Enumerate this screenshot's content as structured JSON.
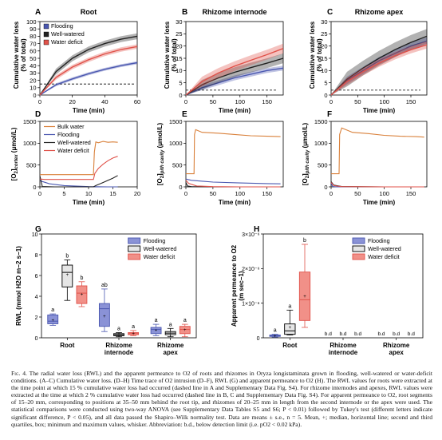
{
  "caption": {
    "label": "Fig. 4.",
    "text": "The radial water loss (RWL) and the apparent permeance to O2 of roots and rhizomes in Oryza longistaminata grown in flooding, well-watered or water-deficit conditions. (A–C) Cumulative water loss. (D–H) Time trace of O2 intrusion (D–F), RWL (G) and apparent permeance to O2 (H). The RWL values for roots were extracted at the time point at which 15 % cumulative water loss had occurred (dashed line in A and Supplementary Data Fig. S4). For rhizome internodes and apexes, RWL values were extracted at the time at which 2 % cumulative water loss had occurred (dashed line in B, C and Supplementary Data Fig. S4). For apparent permeance to O2, root segments of 15–20 mm, corresponding to positions at 35–50 mm behind the root tip, and rhizomes of 20–25 mm in length from the second internode or the apex were used. The statistical comparisons were conducted using two-way ANOVA (see Supplementary Data Tables S5 and S6; P < 0.01) followed by Tukey's test (different letters indicate significant difference, P < 0.05), and all data passed the Shapiro–Wilk normality test. Data are means ± s.e., n = 5. Mean, +; median, horizontal line; second and third quartiles, box; minimum and maximum values, whisker. Abbreviation: b.d., below detection limit (i.e. pO2 < 0.02 kPa)."
  },
  "colors": {
    "flooding": "#4a57b0",
    "well_watered": "#222222",
    "water_deficit": "#e0524a",
    "bulk_water": "#d9803a",
    "dashed": "#000000"
  },
  "chart_data": [
    {
      "panel": "A",
      "type": "line",
      "title": "Root",
      "xlabel": "Time (min)",
      "ylabel": "Cumulative water loss (% of total)",
      "xlim": [
        0,
        60
      ],
      "ylim": [
        0,
        100
      ],
      "xticks": [
        0,
        20,
        40,
        60
      ],
      "yticks": [
        0,
        10,
        20,
        30,
        40,
        50,
        60,
        70,
        80,
        90,
        100
      ],
      "dashed_y": 15,
      "legend": [
        "Flooding",
        "Well-watered",
        "Water deficit"
      ],
      "series": [
        {
          "name": "Flooding",
          "x": [
            0,
            10,
            20,
            30,
            40,
            50,
            60
          ],
          "y": [
            0,
            14,
            22,
            29,
            35,
            40,
            44
          ],
          "band": 2
        },
        {
          "name": "Well-watered",
          "x": [
            0,
            10,
            20,
            30,
            40,
            50,
            60
          ],
          "y": [
            0,
            32,
            50,
            62,
            70,
            76,
            80
          ],
          "band": 4
        },
        {
          "name": "Water deficit",
          "x": [
            0,
            10,
            20,
            30,
            40,
            50,
            60
          ],
          "y": [
            0,
            24,
            38,
            48,
            56,
            62,
            66
          ],
          "band": 3
        }
      ]
    },
    {
      "panel": "B",
      "type": "line",
      "title": "Rhizome internode",
      "xlabel": "Time (min)",
      "ylabel": "Cumulative water loss (% of total)",
      "xlim": [
        0,
        180
      ],
      "ylim": [
        0,
        30
      ],
      "xticks": [
        0,
        50,
        100,
        150
      ],
      "yticks": [
        0,
        5,
        10,
        15,
        20,
        25,
        30
      ],
      "dashed_y": 2,
      "series": [
        {
          "name": "Flooding",
          "x": [
            0,
            30,
            60,
            90,
            120,
            150,
            180
          ],
          "y": [
            0,
            3,
            5,
            7,
            8.5,
            10,
            11
          ],
          "band": 1
        },
        {
          "name": "Well-watered",
          "x": [
            0,
            30,
            60,
            90,
            120,
            150,
            180
          ],
          "y": [
            0,
            4.2,
            7,
            9.3,
            11.2,
            13,
            15
          ],
          "band": 2
        },
        {
          "name": "Water deficit",
          "x": [
            0,
            30,
            60,
            90,
            120,
            150,
            180
          ],
          "y": [
            0,
            5.5,
            9,
            11.8,
            14.2,
            16.5,
            19
          ],
          "band": 2
        }
      ]
    },
    {
      "panel": "C",
      "type": "line",
      "title": "Rhizome apex",
      "xlabel": "Time (min)",
      "ylabel": "Cumulative water loss (% of total)",
      "xlim": [
        0,
        180
      ],
      "ylim": [
        0,
        30
      ],
      "xticks": [
        0,
        50,
        100,
        150
      ],
      "yticks": [
        0,
        5,
        10,
        15,
        20,
        25,
        30
      ],
      "dashed_y": 2,
      "series": [
        {
          "name": "Flooding",
          "x": [
            0,
            30,
            60,
            90,
            120,
            150,
            180
          ],
          "y": [
            0,
            6,
            10,
            14,
            17,
            20,
            22
          ],
          "band": 1.5
        },
        {
          "name": "Well-watered",
          "x": [
            0,
            30,
            60,
            90,
            120,
            150,
            180
          ],
          "y": [
            0,
            6.5,
            11,
            15,
            18.5,
            21.5,
            24
          ],
          "band": 3
        },
        {
          "name": "Water deficit",
          "x": [
            0,
            30,
            60,
            90,
            120,
            150,
            180
          ],
          "y": [
            0,
            5.5,
            9.5,
            13,
            16,
            18.5,
            20.5
          ],
          "band": 1.5
        }
      ]
    },
    {
      "panel": "D",
      "type": "line",
      "xlabel": "Time (min)",
      "ylabel": "[O2]cortex (μmol/L)",
      "xlim": [
        0,
        20
      ],
      "ylim": [
        0,
        1500
      ],
      "xticks": [
        0,
        5,
        10,
        15,
        20
      ],
      "yticks": [
        0,
        500,
        1000,
        1500
      ],
      "legend": [
        "Bulk water",
        "Flooding",
        "Well-watered",
        "Water deficit"
      ],
      "series": [
        {
          "name": "Bulk water",
          "x": [
            0,
            0.3,
            11,
            11.2,
            11.5,
            12,
            13,
            14,
            15,
            16
          ],
          "y": [
            280,
            280,
            280,
            800,
            1030,
            1010,
            1040,
            1020,
            1030,
            1020
          ]
        },
        {
          "name": "Flooding",
          "x": [
            0,
            2,
            5,
            10,
            14,
            16
          ],
          "y": [
            140,
            70,
            30,
            5,
            0,
            0
          ]
        },
        {
          "name": "Well-watered",
          "x": [
            0,
            0.5,
            3,
            5,
            11,
            11.5,
            13,
            15,
            16
          ],
          "y": [
            250,
            10,
            0,
            0,
            0,
            30,
            100,
            200,
            260
          ]
        },
        {
          "name": "Water deficit",
          "x": [
            0,
            1,
            5,
            11,
            11.3,
            12,
            13,
            14,
            15,
            16
          ],
          "y": [
            180,
            170,
            170,
            170,
            310,
            420,
            520,
            600,
            660,
            700
          ]
        }
      ]
    },
    {
      "panel": "E",
      "type": "line",
      "xlabel": "Time (min)",
      "ylabel": "[O2]pith cavity (μmol/L)",
      "xlim": [
        0,
        180
      ],
      "ylim": [
        0,
        1500
      ],
      "xticks": [
        0,
        50,
        100,
        150
      ],
      "yticks": [
        0,
        500,
        1000,
        1500
      ],
      "series": [
        {
          "name": "Bulk water",
          "x": [
            0,
            5,
            15,
            16,
            18,
            30,
            60,
            90,
            120,
            150,
            175
          ],
          "y": [
            300,
            300,
            300,
            1200,
            1310,
            1250,
            1230,
            1200,
            1170,
            1160,
            1150
          ]
        },
        {
          "name": "Flooding",
          "x": [
            0,
            10,
            50,
            100,
            150,
            175
          ],
          "y": [
            180,
            150,
            110,
            90,
            75,
            70
          ]
        },
        {
          "name": "Well-watered",
          "x": [
            0,
            3,
            10,
            50,
            100,
            175
          ],
          "y": [
            100,
            20,
            5,
            0,
            0,
            0
          ]
        },
        {
          "name": "Water deficit",
          "x": [
            0,
            5,
            20,
            50,
            100,
            175
          ],
          "y": [
            150,
            80,
            20,
            5,
            0,
            0
          ]
        }
      ]
    },
    {
      "panel": "F",
      "type": "line",
      "xlabel": "Time (min)",
      "ylabel": "[O2]pith cavity (μmol/L)",
      "xlim": [
        0,
        180
      ],
      "ylim": [
        0,
        1500
      ],
      "xticks": [
        0,
        50,
        100,
        150
      ],
      "yticks": [
        0,
        500,
        1000,
        1500
      ],
      "series": [
        {
          "name": "Bulk water",
          "x": [
            0,
            5,
            15,
            16,
            20,
            40,
            70,
            100,
            130,
            160,
            175
          ],
          "y": [
            300,
            300,
            300,
            1200,
            1350,
            1250,
            1220,
            1180,
            1160,
            1150,
            1140
          ]
        },
        {
          "name": "Flooding",
          "x": [
            0,
            3,
            10,
            30,
            100,
            175
          ],
          "y": [
            80,
            10,
            0,
            0,
            0,
            0
          ]
        },
        {
          "name": "Well-watered",
          "x": [
            0,
            5,
            20,
            100,
            175
          ],
          "y": [
            120,
            40,
            10,
            0,
            0
          ]
        },
        {
          "name": "Water deficit",
          "x": [
            0,
            5,
            20,
            100,
            175
          ],
          "y": [
            100,
            30,
            5,
            0,
            0
          ]
        }
      ]
    },
    {
      "panel": "G",
      "type": "box",
      "ylabel": "RWL (mmol H2O m−2 s−1)",
      "ylim": [
        0,
        10
      ],
      "yticks": [
        0,
        2,
        4,
        6,
        8,
        10
      ],
      "categories": [
        "Root",
        "Rhizome internode",
        "Rhizome apex"
      ],
      "legend": [
        "Flooding",
        "Well-watered",
        "Water deficit"
      ],
      "groups": [
        {
          "category": "Root",
          "series": "Flooding",
          "min": 1.2,
          "q1": 1.35,
          "median": 1.6,
          "q3": 2.2,
          "max": 2.3,
          "mean": 1.7,
          "letter": "a"
        },
        {
          "category": "Root",
          "series": "Well-watered",
          "min": 3.6,
          "q1": 4.9,
          "median": 6.3,
          "q3": 7.0,
          "max": 7.5,
          "mean": 6.1,
          "letter": "b"
        },
        {
          "category": "Root",
          "series": "Water deficit",
          "min": 3.0,
          "q1": 3.3,
          "median": 4.3,
          "q3": 5.0,
          "max": 5.4,
          "mean": 4.2,
          "letter": "b"
        },
        {
          "category": "Rhizome internode",
          "series": "Flooding",
          "min": 0.6,
          "q1": 1.1,
          "median": 2.8,
          "q3": 3.3,
          "max": 4.7,
          "mean": 2.1,
          "letter": "ab"
        },
        {
          "category": "Rhizome internode",
          "series": "Well-watered",
          "min": 0.1,
          "q1": 0.2,
          "median": 0.3,
          "q3": 0.4,
          "max": 0.5,
          "mean": 0.3,
          "letter": "a"
        },
        {
          "category": "Rhizome internode",
          "series": "Water deficit",
          "min": 0.2,
          "q1": 0.3,
          "median": 0.4,
          "q3": 0.5,
          "max": 0.7,
          "mean": 0.45,
          "letter": "a"
        },
        {
          "category": "Rhizome apex",
          "series": "Flooding",
          "min": 0.2,
          "q1": 0.4,
          "median": 0.8,
          "q3": 1.0,
          "max": 1.3,
          "mean": 0.75,
          "letter": "a"
        },
        {
          "category": "Rhizome apex",
          "series": "Well-watered",
          "min": 0.1,
          "q1": 0.3,
          "median": 0.45,
          "q3": 0.6,
          "max": 0.9,
          "mean": 0.45,
          "letter": "a"
        },
        {
          "category": "Rhizome apex",
          "series": "Water deficit",
          "min": 0.1,
          "q1": 0.4,
          "median": 0.8,
          "q3": 1.1,
          "max": 1.3,
          "mean": 0.8,
          "letter": "a"
        }
      ]
    },
    {
      "panel": "H",
      "type": "box",
      "ylabel": "Apparent permeance to O2 (m sec−1)",
      "ylim": [
        0,
        3e-06
      ],
      "yticks": [
        0,
        1e-06,
        2e-06,
        3e-06
      ],
      "ytick_labels": [
        "0",
        "1×10⁻⁶",
        "2×10⁻⁶",
        "3×10⁻⁶"
      ],
      "categories": [
        "Root",
        "Rhizome internode",
        "Rhizome apex"
      ],
      "legend": [
        "Flooding",
        "Well-watered",
        "Water deficit"
      ],
      "below_detection_label": "b.d",
      "groups": [
        {
          "category": "Root",
          "series": "Flooding",
          "min": 2e-08,
          "q1": 4e-08,
          "median": 6e-08,
          "q3": 8e-08,
          "max": 1e-07,
          "mean": 6e-08,
          "letter": "a"
        },
        {
          "category": "Root",
          "series": "Well-watered",
          "min": 8e-08,
          "q1": 1e-07,
          "median": 2e-07,
          "q3": 4e-07,
          "max": 8e-07,
          "mean": 3e-07,
          "letter": "a"
        },
        {
          "category": "Root",
          "series": "Water deficit",
          "min": 3e-07,
          "q1": 5e-07,
          "median": 1.1e-06,
          "q3": 1.9e-06,
          "max": 2.7e-06,
          "mean": 1.2e-06,
          "letter": "b"
        },
        {
          "category": "Rhizome internode",
          "series": "Flooding",
          "bd": true
        },
        {
          "category": "Rhizome internode",
          "series": "Well-watered",
          "bd": true
        },
        {
          "category": "Rhizome internode",
          "series": "Water deficit",
          "bd": true
        },
        {
          "category": "Rhizome apex",
          "series": "Flooding",
          "bd": true
        },
        {
          "category": "Rhizome apex",
          "series": "Well-watered",
          "bd": true
        },
        {
          "category": "Rhizome apex",
          "series": "Water deficit",
          "bd": true
        }
      ]
    }
  ]
}
